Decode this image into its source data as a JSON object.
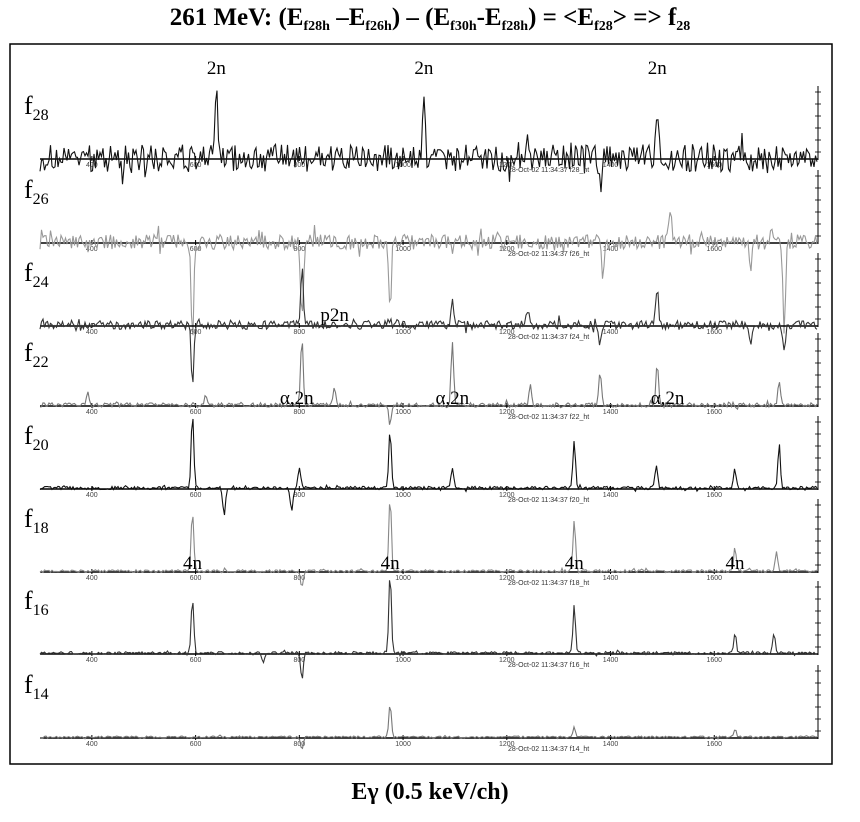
{
  "title": {
    "prefix": "261 MeV: (E",
    "sub1": "f28h",
    "mid1": " –E",
    "sub2": "f26h",
    "mid2": ") – (E",
    "sub3": "f30h",
    "mid3": "-E",
    "sub4": "f28h",
    "mid4": ") = <E",
    "sub5": "f28",
    "mid5": "> => f",
    "sub6": "28"
  },
  "xlabel": "Eγ (0.5 keV/ch)",
  "chart_data": {
    "type": "line",
    "x_range": [
      300,
      1800
    ],
    "tick_labels": [
      "400",
      "600",
      "800",
      "1000",
      "1200",
      "1400",
      "1600"
    ],
    "spectra": [
      {
        "name": "f",
        "sub": "28",
        "color": "#111111",
        "noise": 1.0,
        "timestamp": "28-Oct-02 11:34:37 f28_ht",
        "peaks": [
          {
            "x": 640,
            "h": 0.8
          },
          {
            "x": 1040,
            "h": 0.85
          },
          {
            "x": 1490,
            "h": 0.7
          }
        ],
        "dips": [
          {
            "x": 1380,
            "h": 0.45
          }
        ],
        "annotations": [
          {
            "text": "2n",
            "x": 640
          },
          {
            "text": "2n",
            "x": 1040
          },
          {
            "text": "2n",
            "x": 1490
          }
        ]
      },
      {
        "name": "f",
        "sub": "26",
        "color": "#999999",
        "noise": 0.55,
        "timestamp": "28-Oct-02 11:34:37 f26_ht",
        "peaks": [
          {
            "x": 1515,
            "h": 0.45
          }
        ],
        "dips": [
          {
            "x": 594,
            "h": 1.4
          },
          {
            "x": 805,
            "h": 1.2
          },
          {
            "x": 975,
            "h": 0.95
          },
          {
            "x": 1385,
            "h": 0.6
          },
          {
            "x": 1670,
            "h": 0.45
          },
          {
            "x": 1735,
            "h": 1.3
          }
        ],
        "annotations": []
      },
      {
        "name": "f",
        "sub": "24",
        "color": "#333333",
        "noise": 0.32,
        "timestamp": "28-Oct-02 11:34:37 f24_ht",
        "peaks": [
          {
            "x": 805,
            "h": 0.85
          },
          {
            "x": 975,
            "h": 0.6
          },
          {
            "x": 1095,
            "h": 0.4
          },
          {
            "x": 1490,
            "h": 0.6
          },
          {
            "x": 1240,
            "h": 0.3
          }
        ],
        "dips": [
          {
            "x": 594,
            "h": 0.9
          },
          {
            "x": 975,
            "h": 0.5
          },
          {
            "x": 1380,
            "h": 0.3
          },
          {
            "x": 1735,
            "h": 0.4
          },
          {
            "x": 1670,
            "h": 0.3
          }
        ],
        "annotations": []
      },
      {
        "name": "f",
        "sub": "22",
        "color": "#777777",
        "noise": 0.16,
        "timestamp": "28-Oct-02 11:34:37 f22_ht",
        "peaks": [
          {
            "x": 805,
            "h": 1.0
          },
          {
            "x": 868,
            "h": 0.25
          },
          {
            "x": 1095,
            "h": 0.95
          },
          {
            "x": 1245,
            "h": 0.3
          },
          {
            "x": 1380,
            "h": 0.5
          },
          {
            "x": 1490,
            "h": 0.6
          },
          {
            "x": 1725,
            "h": 0.35
          },
          {
            "x": 392,
            "h": 0.2
          },
          {
            "x": 620,
            "h": 0.15
          }
        ],
        "dips": [
          {
            "x": 975,
            "h": 0.3
          }
        ],
        "annotations": [
          {
            "text": "p2n",
            "x": 868
          }
        ]
      },
      {
        "name": "f",
        "sub": "20",
        "color": "#111111",
        "noise": 0.12,
        "timestamp": "28-Oct-02 11:34:37 f20_ht",
        "peaks": [
          {
            "x": 594,
            "h": 1.1
          },
          {
            "x": 975,
            "h": 0.85
          },
          {
            "x": 1095,
            "h": 0.3
          },
          {
            "x": 1330,
            "h": 0.7
          },
          {
            "x": 1488,
            "h": 0.35
          },
          {
            "x": 1640,
            "h": 0.3
          },
          {
            "x": 1725,
            "h": 0.65
          },
          {
            "x": 800,
            "h": 0.3
          }
        ],
        "dips": [
          {
            "x": 655,
            "h": 0.4
          },
          {
            "x": 785,
            "h": 0.35
          }
        ],
        "annotations": [
          {
            "text": "α,2n",
            "x": 795
          },
          {
            "text": "α,2n",
            "x": 1095
          },
          {
            "text": "α,2n",
            "x": 1510
          }
        ]
      },
      {
        "name": "f",
        "sub": "18",
        "color": "#888888",
        "noise": 0.1,
        "timestamp": "28-Oct-02 11:34:37 f18_ht",
        "peaks": [
          {
            "x": 594,
            "h": 0.9
          },
          {
            "x": 975,
            "h": 1.1
          },
          {
            "x": 1330,
            "h": 0.75
          },
          {
            "x": 1640,
            "h": 0.35
          },
          {
            "x": 1720,
            "h": 0.3
          }
        ],
        "dips": [
          {
            "x": 805,
            "h": 0.25
          }
        ],
        "annotations": []
      },
      {
        "name": "f",
        "sub": "16",
        "color": "#333333",
        "noise": 0.1,
        "timestamp": "28-Oct-02 11:34:37 f16_ht",
        "peaks": [
          {
            "x": 594,
            "h": 0.8
          },
          {
            "x": 975,
            "h": 1.2
          },
          {
            "x": 1330,
            "h": 0.7
          },
          {
            "x": 1640,
            "h": 0.3
          },
          {
            "x": 1715,
            "h": 0.3
          }
        ],
        "dips": [
          {
            "x": 805,
            "h": 0.4
          },
          {
            "x": 730,
            "h": 0.15
          }
        ],
        "annotations": [
          {
            "text": "4n",
            "x": 594
          },
          {
            "text": "4n",
            "x": 975
          },
          {
            "text": "4n",
            "x": 1330
          },
          {
            "text": "4n",
            "x": 1640
          }
        ]
      },
      {
        "name": "f",
        "sub": "14",
        "color": "#777777",
        "noise": 0.07,
        "timestamp": "28-Oct-02 11:34:37 f14_ht",
        "peaks": [
          {
            "x": 975,
            "h": 0.5
          },
          {
            "x": 1330,
            "h": 0.15
          },
          {
            "x": 1640,
            "h": 0.12
          }
        ],
        "dips": [
          {
            "x": 805,
            "h": 0.2
          }
        ],
        "annotations": []
      }
    ]
  }
}
